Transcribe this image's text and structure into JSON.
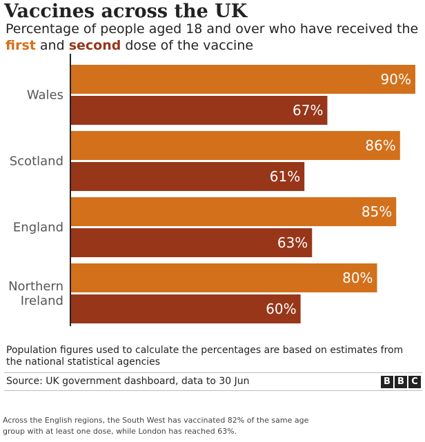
{
  "header": {
    "title": "Vaccines across the UK",
    "subtitle_part1": "Percentage of people aged 18 and over who have received the ",
    "subtitle_first": "first",
    "subtitle_part2": " and ",
    "subtitle_second": "second",
    "subtitle_part3": " dose of the vaccine"
  },
  "colors": {
    "first_dose": "#d3701b",
    "second_dose": "#973619",
    "axis": "#222222",
    "background": "#ffffff"
  },
  "chart_data": {
    "type": "bar",
    "orientation": "horizontal",
    "categories": [
      "Wales",
      "Scotland",
      "England",
      "Northern Ireland"
    ],
    "category_lines": [
      [
        "Wales"
      ],
      [
        "Scotland"
      ],
      [
        "England"
      ],
      [
        "Northern",
        "Ireland"
      ]
    ],
    "series": [
      {
        "name": "first",
        "values": [
          90,
          86,
          85,
          80
        ],
        "labels": [
          "90%",
          "86%",
          "85%",
          "80%"
        ],
        "color": "#d3701b"
      },
      {
        "name": "second",
        "values": [
          67,
          61,
          63,
          60
        ],
        "labels": [
          "67%",
          "61%",
          "63%",
          "60%"
        ],
        "color": "#973619"
      }
    ],
    "xlim": [
      0,
      90
    ],
    "grid": false,
    "legend": "none"
  },
  "note": "Population figures used to calculate the percentages are based on estimates from the national statistical agencies",
  "source": "Source: UK government dashboard, data to 30 Jun",
  "logo": [
    "B",
    "B",
    "C"
  ],
  "footnote": "Across the English regions, the South West has vaccinated 82% of the same age group with at least one dose, while London has reached 63%."
}
